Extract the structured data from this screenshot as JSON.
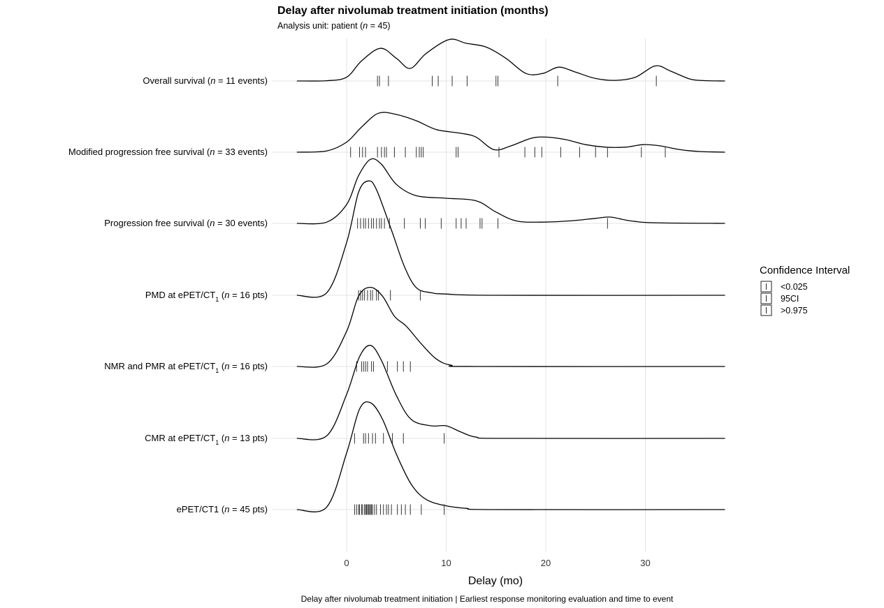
{
  "chart_data": {
    "type": "ridgeline",
    "title": "Delay after nivolumab treatment initiation (months)",
    "subtitle": "Analysis unit: patient (n = 45)",
    "xlabel": "Delay (mo)",
    "caption": "Delay after nivolumab treatment initiation | Earliest response monitoring evaluation  and time to event",
    "xlim": [
      -5,
      38
    ],
    "x_ticks": [
      0,
      10,
      20,
      30
    ],
    "x_tick_labels": [
      "0",
      "10",
      "20",
      "30"
    ],
    "grid": true,
    "legend": {
      "title": "Confidence Interval",
      "position": "right",
      "entries": [
        "<0.025",
        "95CI",
        ">0.975"
      ]
    },
    "series": [
      {
        "label_parts": [
          {
            "t": "Overall survival ("
          },
          {
            "t": "n",
            "i": true
          },
          {
            "t": " = 11 events)"
          }
        ],
        "events": [
          3.1,
          3.3,
          4.2,
          8.6,
          9.2,
          10.6,
          12.1,
          15.0,
          15.2,
          21.2,
          31.1
        ],
        "density": [
          [
            -5,
            0
          ],
          [
            -2,
            0.002
          ],
          [
            0,
            0.03
          ],
          [
            1.5,
            0.16
          ],
          [
            3.4,
            0.26
          ],
          [
            5,
            0.18
          ],
          [
            6.4,
            0.1
          ],
          [
            8,
            0.22
          ],
          [
            10.3,
            0.33
          ],
          [
            12,
            0.3
          ],
          [
            14,
            0.27
          ],
          [
            16,
            0.18
          ],
          [
            18,
            0.06
          ],
          [
            19.7,
            0.06
          ],
          [
            21.3,
            0.11
          ],
          [
            23,
            0.07
          ],
          [
            25,
            0.02
          ],
          [
            27,
            0.005
          ],
          [
            29,
            0.03
          ],
          [
            31,
            0.12
          ],
          [
            32.5,
            0.08
          ],
          [
            34.5,
            0.015
          ],
          [
            36,
            0.003
          ],
          [
            38,
            0
          ]
        ]
      },
      {
        "label_parts": [
          {
            "t": "Modified progression free survival ("
          },
          {
            "t": "n",
            "i": true
          },
          {
            "t": " = 33 events)"
          }
        ],
        "events": [
          0.4,
          1.3,
          1.6,
          1.9,
          3.1,
          3.5,
          3.8,
          4.0,
          4.8,
          5.9,
          7.0,
          7.3,
          7.5,
          7.7,
          11.0,
          11.2,
          15.3,
          17.9,
          18.9,
          19.6,
          21.5,
          23.4,
          25.0,
          26.2,
          29.6,
          32.0
        ],
        "density": [
          [
            -5,
            0
          ],
          [
            -2,
            0.01
          ],
          [
            0,
            0.08
          ],
          [
            1.5,
            0.2
          ],
          [
            3.2,
            0.31
          ],
          [
            5,
            0.3
          ],
          [
            7,
            0.25
          ],
          [
            9,
            0.18
          ],
          [
            11.5,
            0.15
          ],
          [
            13,
            0.12
          ],
          [
            14.8,
            0.02
          ],
          [
            16.5,
            0.05
          ],
          [
            18.5,
            0.11
          ],
          [
            20,
            0.12
          ],
          [
            22,
            0.1
          ],
          [
            24,
            0.06
          ],
          [
            26,
            0.04
          ],
          [
            28,
            0.04
          ],
          [
            29.8,
            0.06
          ],
          [
            31.5,
            0.05
          ],
          [
            33.5,
            0.02
          ],
          [
            35.5,
            0.005
          ],
          [
            38,
            0
          ]
        ]
      },
      {
        "label_parts": [
          {
            "t": "Progression free survival ("
          },
          {
            "t": "n",
            "i": true
          },
          {
            "t": " = 30 events)"
          }
        ],
        "events": [
          1.1,
          1.4,
          1.7,
          1.9,
          2.2,
          2.5,
          2.7,
          3.0,
          3.3,
          3.5,
          3.8,
          4.3,
          5.8,
          7.4,
          7.9,
          9.5,
          11.0,
          11.5,
          12.0,
          13.4,
          13.6,
          15.2,
          26.2
        ],
        "density": [
          [
            -5,
            0
          ],
          [
            -2,
            0.01
          ],
          [
            0,
            0.15
          ],
          [
            1.2,
            0.38
          ],
          [
            2.4,
            0.51
          ],
          [
            3.5,
            0.47
          ],
          [
            5,
            0.31
          ],
          [
            7,
            0.22
          ],
          [
            10,
            0.2
          ],
          [
            13,
            0.18
          ],
          [
            15,
            0.09
          ],
          [
            17,
            0.02
          ],
          [
            19.5,
            0.01
          ],
          [
            22.5,
            0.02
          ],
          [
            25,
            0.04
          ],
          [
            26.5,
            0.05
          ],
          [
            28.5,
            0.02
          ],
          [
            31,
            0.005
          ],
          [
            38,
            0
          ]
        ]
      },
      {
        "label_parts": [
          {
            "t": "PMD at ePET/CT"
          },
          {
            "t": "1",
            "sub": true
          },
          {
            "t": " ("
          },
          {
            "t": "n",
            "i": true
          },
          {
            "t": " = 16 pts)"
          }
        ],
        "events": [
          1.2,
          1.4,
          1.6,
          1.8,
          2.1,
          2.4,
          2.6,
          3.0,
          3.2,
          4.4,
          7.4
        ],
        "density": [
          [
            -5,
            0
          ],
          [
            -2,
            0.02
          ],
          [
            0,
            0.42
          ],
          [
            1.2,
            0.82
          ],
          [
            2.2,
            0.91
          ],
          [
            3,
            0.84
          ],
          [
            4.5,
            0.52
          ],
          [
            5.8,
            0.23
          ],
          [
            7,
            0.06
          ],
          [
            8.5,
            0.02
          ],
          [
            10,
            0.01
          ],
          [
            15,
            0
          ],
          [
            38,
            0
          ]
        ]
      },
      {
        "label_parts": [
          {
            "t": "NMR and PMR at ePET/CT"
          },
          {
            "t": "1",
            "sub": true
          },
          {
            "t": " ("
          },
          {
            "t": "n",
            "i": true
          },
          {
            "t": " = 16 pts)"
          }
        ],
        "events": [
          1.0,
          1.5,
          1.7,
          1.9,
          2.1,
          2.5,
          2.7,
          4.1,
          5.1,
          5.7,
          6.4
        ],
        "density": [
          [
            -5,
            0
          ],
          [
            -2,
            0.02
          ],
          [
            0,
            0.28
          ],
          [
            1.2,
            0.56
          ],
          [
            2.4,
            0.63
          ],
          [
            3.6,
            0.56
          ],
          [
            4.8,
            0.4
          ],
          [
            6,
            0.32
          ],
          [
            7.5,
            0.18
          ],
          [
            9,
            0.06
          ],
          [
            10.5,
            0.01
          ],
          [
            13,
            0
          ],
          [
            38,
            0
          ]
        ]
      },
      {
        "label_parts": [
          {
            "t": "CMR at ePET/CT"
          },
          {
            "t": "1",
            "sub": true
          },
          {
            "t": " ("
          },
          {
            "t": "n",
            "i": true
          },
          {
            "t": " = 13 pts)"
          }
        ],
        "events": [
          0.8,
          1.7,
          1.9,
          2.2,
          2.6,
          2.9,
          3.7,
          4.6,
          5.7,
          9.8
        ],
        "density": [
          [
            -5,
            0
          ],
          [
            -2,
            0.02
          ],
          [
            0,
            0.35
          ],
          [
            1.3,
            0.65
          ],
          [
            2.4,
            0.74
          ],
          [
            3.5,
            0.62
          ],
          [
            5,
            0.34
          ],
          [
            6.5,
            0.15
          ],
          [
            8.5,
            0.1
          ],
          [
            10,
            0.1
          ],
          [
            11.5,
            0.05
          ],
          [
            13,
            0.01
          ],
          [
            16,
            0
          ],
          [
            38,
            0
          ]
        ]
      },
      {
        "label_parts": [
          {
            "t": "ePET/CT1 ("
          },
          {
            "t": "n",
            "i": true
          },
          {
            "t": " = 45 pts)"
          }
        ],
        "events": [
          0.8,
          1.0,
          1.2,
          1.3,
          1.5,
          1.6,
          1.8,
          1.9,
          2.0,
          2.1,
          2.2,
          2.3,
          2.4,
          2.5,
          2.6,
          2.8,
          3.0,
          3.4,
          3.7,
          4.0,
          4.2,
          4.5,
          5.1,
          5.5,
          5.9,
          6.4,
          7.5,
          9.8
        ],
        "density": [
          [
            -5,
            0
          ],
          [
            -2,
            0.02
          ],
          [
            0,
            0.45
          ],
          [
            1.3,
            0.8
          ],
          [
            2.4,
            0.85
          ],
          [
            3.6,
            0.72
          ],
          [
            5,
            0.44
          ],
          [
            6.5,
            0.2
          ],
          [
            8,
            0.08
          ],
          [
            10,
            0.03
          ],
          [
            12,
            0.01
          ],
          [
            15,
            0
          ],
          [
            38,
            0
          ]
        ]
      }
    ]
  }
}
